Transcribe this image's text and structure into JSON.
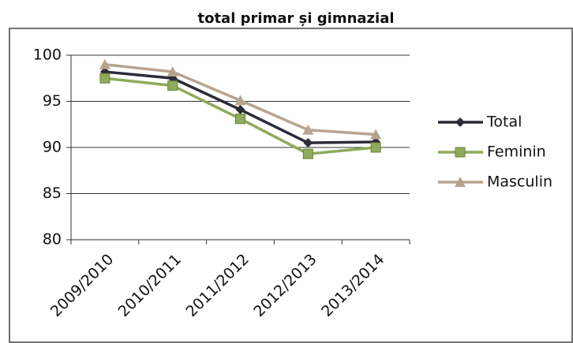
{
  "chart_data": {
    "type": "line",
    "title": "total primar și gimnazial",
    "categories": [
      "2009/2010",
      "2010/2011",
      "2011/2012",
      "2012/2013",
      "2013/2014"
    ],
    "series": [
      {
        "name": "Total",
        "color": "#2b2b3a",
        "marker": "diamond",
        "values": [
          98.2,
          97.5,
          94.1,
          90.5,
          90.6
        ]
      },
      {
        "name": "Feminin",
        "color": "#8faa5a",
        "marker": "square",
        "values": [
          97.5,
          96.7,
          93.1,
          89.3,
          90.0
        ]
      },
      {
        "name": "Masculin",
        "color": "#b8a48e",
        "marker": "triangle",
        "values": [
          99.0,
          98.2,
          95.1,
          91.9,
          91.4
        ]
      }
    ],
    "ylim": [
      80,
      100
    ],
    "yticks": [
      80,
      85,
      90,
      95,
      100
    ],
    "grid": true,
    "legend": "right"
  }
}
